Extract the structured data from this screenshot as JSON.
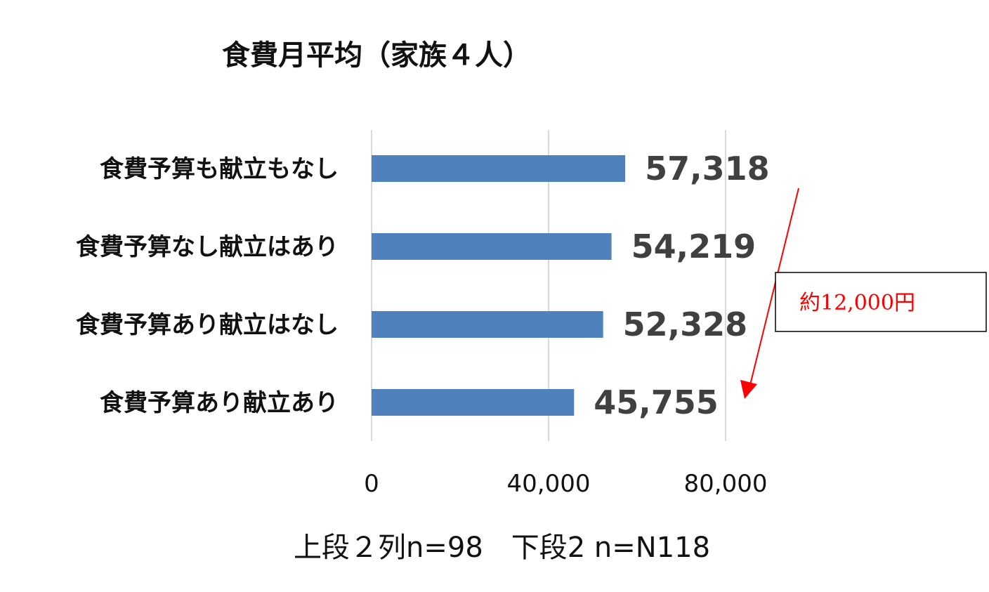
{
  "chart_data": {
    "type": "bar",
    "orientation": "horizontal",
    "title": "食費月平均（家族４人）",
    "categories": [
      "食費予算も献立もなし",
      "食費予算なし献立はあり",
      "食費予算あり献立はなし",
      "食費予算あり献立あり"
    ],
    "values": [
      57318,
      54219,
      52328,
      45755
    ],
    "value_labels": [
      "57,318",
      "54,219",
      "52,328",
      "45,755"
    ],
    "xlim": [
      0,
      80000
    ],
    "xticks": [
      0,
      40000,
      80000
    ],
    "xtick_labels": [
      "0",
      "40,000",
      "80,000"
    ],
    "grid": true,
    "bar_color": "#4f81bd",
    "footnote": "上段２列n=98　下段2 n=N118",
    "annotation": {
      "text": "約12,000円",
      "color": "#ff0000"
    }
  }
}
